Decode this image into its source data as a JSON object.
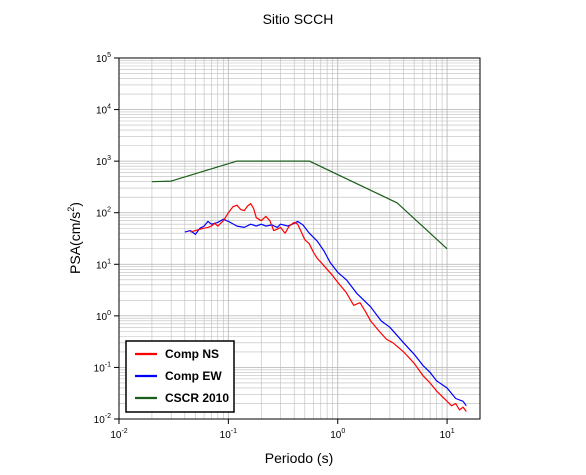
{
  "chart_data": {
    "type": "line",
    "title": "Sitio SCCH",
    "xlabel": "Periodo (s)",
    "ylabel_base": "PSA(cm/s",
    "ylabel_sup": "2",
    "ylabel_end": ")",
    "xscale": "log",
    "yscale": "log",
    "xlim": [
      0.01,
      20
    ],
    "ylim": [
      0.01,
      100000
    ],
    "grid": true,
    "legend_position": "bottom-left",
    "x_ticks": [
      {
        "base": "10",
        "exp": "-2",
        "value": 0.01
      },
      {
        "base": "10",
        "exp": "-1",
        "value": 0.1
      },
      {
        "base": "10",
        "exp": "0",
        "value": 1
      },
      {
        "base": "10",
        "exp": "1",
        "value": 10
      }
    ],
    "y_ticks": [
      {
        "base": "10",
        "exp": "-2",
        "value": 0.01
      },
      {
        "base": "10",
        "exp": "-1",
        "value": 0.1
      },
      {
        "base": "10",
        "exp": "0",
        "value": 1
      },
      {
        "base": "10",
        "exp": "1",
        "value": 10
      },
      {
        "base": "10",
        "exp": "2",
        "value": 100
      },
      {
        "base": "10",
        "exp": "3",
        "value": 1000
      },
      {
        "base": "10",
        "exp": "4",
        "value": 10000
      },
      {
        "base": "10",
        "exp": "5",
        "value": 100000
      }
    ],
    "series": [
      {
        "name": "CSCR 2010",
        "color": "#1a5e1a",
        "points": [
          [
            0.02,
            400
          ],
          [
            0.03,
            410
          ],
          [
            0.12,
            1000
          ],
          [
            0.55,
            1000
          ],
          [
            3.5,
            155
          ],
          [
            10,
            20
          ]
        ]
      },
      {
        "name": "Comp EW",
        "color": "#0000ff",
        "points": [
          [
            0.04,
            42
          ],
          [
            0.045,
            45
          ],
          [
            0.05,
            38
          ],
          [
            0.055,
            50
          ],
          [
            0.06,
            55
          ],
          [
            0.065,
            68
          ],
          [
            0.07,
            60
          ],
          [
            0.08,
            65
          ],
          [
            0.09,
            75
          ],
          [
            0.1,
            68
          ],
          [
            0.12,
            55
          ],
          [
            0.14,
            52
          ],
          [
            0.16,
            60
          ],
          [
            0.18,
            55
          ],
          [
            0.2,
            60
          ],
          [
            0.22,
            55
          ],
          [
            0.25,
            58
          ],
          [
            0.28,
            52
          ],
          [
            0.3,
            60
          ],
          [
            0.35,
            55
          ],
          [
            0.4,
            62
          ],
          [
            0.43,
            68
          ],
          [
            0.48,
            58
          ],
          [
            0.55,
            40
          ],
          [
            0.65,
            28
          ],
          [
            0.75,
            18
          ],
          [
            0.85,
            11
          ],
          [
            1.0,
            7
          ],
          [
            1.2,
            5
          ],
          [
            1.5,
            2.7
          ],
          [
            2.0,
            1.5
          ],
          [
            2.5,
            0.8
          ],
          [
            3.0,
            0.6
          ],
          [
            4.0,
            0.3
          ],
          [
            5.0,
            0.18
          ],
          [
            6.0,
            0.11
          ],
          [
            7.0,
            0.08
          ],
          [
            8.0,
            0.055
          ],
          [
            10,
            0.04
          ],
          [
            12,
            0.025
          ],
          [
            14,
            0.022
          ],
          [
            15,
            0.018
          ]
        ]
      },
      {
        "name": "Comp NS",
        "color": "#ff0000",
        "points": [
          [
            0.045,
            42
          ],
          [
            0.05,
            45
          ],
          [
            0.055,
            48
          ],
          [
            0.06,
            50
          ],
          [
            0.065,
            52
          ],
          [
            0.07,
            55
          ],
          [
            0.075,
            62
          ],
          [
            0.08,
            55
          ],
          [
            0.09,
            70
          ],
          [
            0.1,
            100
          ],
          [
            0.11,
            130
          ],
          [
            0.12,
            140
          ],
          [
            0.13,
            115
          ],
          [
            0.14,
            110
          ],
          [
            0.15,
            135
          ],
          [
            0.16,
            150
          ],
          [
            0.17,
            120
          ],
          [
            0.18,
            80
          ],
          [
            0.2,
            70
          ],
          [
            0.22,
            85
          ],
          [
            0.24,
            70
          ],
          [
            0.26,
            45
          ],
          [
            0.28,
            48
          ],
          [
            0.3,
            52
          ],
          [
            0.33,
            40
          ],
          [
            0.36,
            55
          ],
          [
            0.4,
            65
          ],
          [
            0.43,
            60
          ],
          [
            0.47,
            40
          ],
          [
            0.5,
            30
          ],
          [
            0.55,
            25
          ],
          [
            0.6,
            17
          ],
          [
            0.65,
            13
          ],
          [
            0.7,
            11
          ],
          [
            0.8,
            8
          ],
          [
            0.9,
            6
          ],
          [
            1.0,
            4.5
          ],
          [
            1.2,
            2.8
          ],
          [
            1.4,
            1.6
          ],
          [
            1.6,
            1.8
          ],
          [
            1.8,
            1.2
          ],
          [
            2.0,
            0.8
          ],
          [
            2.4,
            0.5
          ],
          [
            2.8,
            0.35
          ],
          [
            3.2,
            0.3
          ],
          [
            4.0,
            0.2
          ],
          [
            5.0,
            0.12
          ],
          [
            6.0,
            0.07
          ],
          [
            7.0,
            0.05
          ],
          [
            8.0,
            0.035
          ],
          [
            10,
            0.022
          ],
          [
            11,
            0.018
          ],
          [
            12,
            0.02
          ],
          [
            13,
            0.015
          ],
          [
            14,
            0.017
          ],
          [
            15,
            0.014
          ]
        ]
      }
    ],
    "legend_entries": [
      {
        "name": "Comp NS",
        "color": "#ff0000"
      },
      {
        "name": "Comp EW",
        "color": "#0000ff"
      },
      {
        "name": "CSCR 2010",
        "color": "#1a5e1a"
      }
    ]
  }
}
